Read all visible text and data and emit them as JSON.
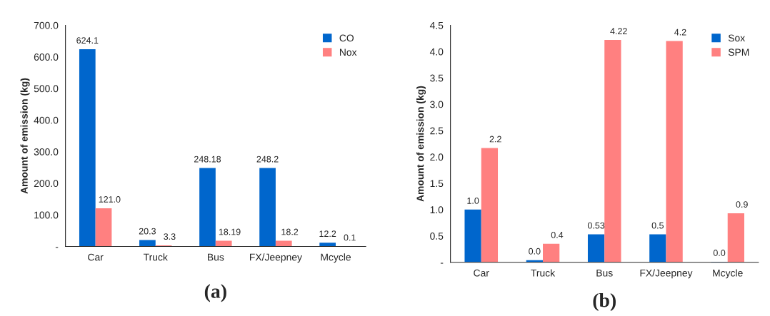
{
  "chart_data": [
    {
      "type": "bar",
      "ylabel": "Amount of emission (kg)",
      "categories": [
        "Car",
        "Truck",
        "Bus",
        "FX/Jeepney",
        "Mcycle"
      ],
      "ylim": [
        0,
        700
      ],
      "yticks": [
        {
          "value": 0,
          "label": "-"
        },
        {
          "value": 100,
          "label": "100.0"
        },
        {
          "value": 200,
          "label": "200.0"
        },
        {
          "value": 300,
          "label": "300.0"
        },
        {
          "value": 400,
          "label": "400.0"
        },
        {
          "value": 500,
          "label": "500.0"
        },
        {
          "value": 600,
          "label": "600.0"
        },
        {
          "value": 700,
          "label": "700.0"
        }
      ],
      "legend": "top right",
      "grid": false,
      "annotations": [
        "(a)"
      ],
      "series": [
        {
          "name": "CO",
          "color": "#0066cc",
          "values": [
            624.1,
            20.3,
            248.18,
            248.2,
            12.2
          ],
          "value_labels": [
            "624.1",
            "20.3",
            "248.18",
            "248.2",
            "12.2"
          ]
        },
        {
          "name": "Nox",
          "color": "#ff8080",
          "values": [
            121.0,
            3.3,
            18.19,
            18.2,
            0.1
          ],
          "value_labels": [
            "121.0",
            "3.3",
            "18.19",
            "18.2",
            "0.1"
          ]
        }
      ]
    },
    {
      "type": "bar",
      "ylabel": "Amount of emission (kg)",
      "categories": [
        "Car",
        "Truck",
        "Bus",
        "FX/Jeepney",
        "Mcycle"
      ],
      "ylim": [
        0,
        4.5
      ],
      "yticks": [
        {
          "value": 0,
          "label": "-"
        },
        {
          "value": 0.5,
          "label": "0.5"
        },
        {
          "value": 1.0,
          "label": "1.0"
        },
        {
          "value": 1.5,
          "label": "1.5"
        },
        {
          "value": 2.0,
          "label": "2.0"
        },
        {
          "value": 2.5,
          "label": "2.5"
        },
        {
          "value": 3.0,
          "label": "3.0"
        },
        {
          "value": 3.5,
          "label": "3.5"
        },
        {
          "value": 4.0,
          "label": "4.0"
        },
        {
          "value": 4.5,
          "label": "4.5"
        }
      ],
      "legend": "top right",
      "grid": false,
      "annotations": [
        "(b)"
      ],
      "series": [
        {
          "name": "Sox",
          "color": "#0066cc",
          "values": [
            1.0,
            0.04,
            0.53,
            0.53,
            0.01
          ],
          "value_labels": [
            "1.0",
            "0.0",
            "0.53",
            "0.5",
            "0.0"
          ]
        },
        {
          "name": "SPM",
          "color": "#ff8080",
          "values": [
            2.17,
            0.35,
            4.22,
            4.2,
            0.93
          ],
          "value_labels": [
            "2.2",
            "0.4",
            "4.22",
            "4.2",
            "0.9"
          ]
        }
      ]
    }
  ]
}
